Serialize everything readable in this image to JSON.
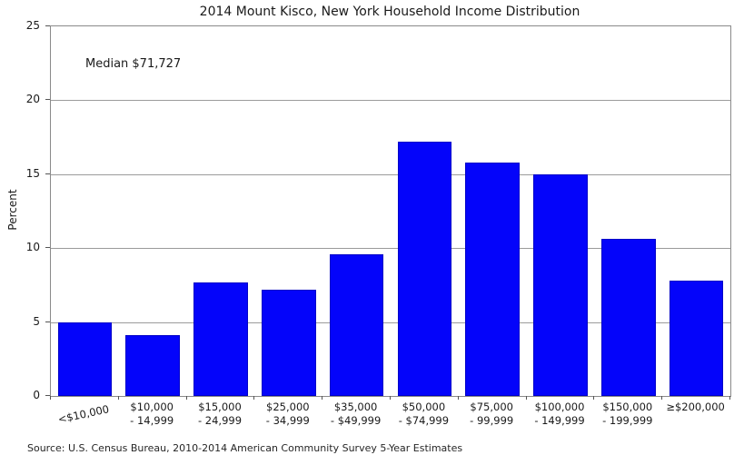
{
  "title": "2014 Mount Kisco, New York Household Income Distribution",
  "annotation": "Median $71,727",
  "ylabel": "Percent",
  "source": "Source: U.S. Census Bureau, 2010-2014 American Community Survey 5-Year Estimates",
  "chart_data": {
    "type": "bar",
    "title": "2014 Mount Kisco, New York Household Income Distribution",
    "xlabel": "",
    "ylabel": "Percent",
    "ylim": [
      0,
      25
    ],
    "yticks": [
      0,
      5,
      10,
      15,
      20,
      25
    ],
    "grid": true,
    "legend_position": "none",
    "bar_color": "#0404fa",
    "bar_edge_color": "#0000c8",
    "annotation": "Median $71,727",
    "categories": [
      "<$10,000",
      "$10,000 - 14,999",
      "$15,000 - 24,999",
      "$25,000 - 34,999",
      "$35,000 - $49,999",
      "$50,000 - $74,999",
      "$75,000 - 99,999",
      "$100,000 - 149,999",
      "$150,000 - 199,999",
      "≥$200,000"
    ],
    "category_label_lines": [
      [
        "<$10,000"
      ],
      [
        "$10,000",
        "- 14,999"
      ],
      [
        "$15,000",
        "- 24,999"
      ],
      [
        "$25,000",
        "- 34,999"
      ],
      [
        "$35,000",
        "- $49,999"
      ],
      [
        "$50,000",
        "- $74,999"
      ],
      [
        "$75,000",
        "- 99,999"
      ],
      [
        "$100,000",
        "- 149,999"
      ],
      [
        "$150,000",
        "- 199,999"
      ],
      [
        "≥$200,000"
      ]
    ],
    "values": [
      5.0,
      4.1,
      7.7,
      7.2,
      9.6,
      17.2,
      15.8,
      15.0,
      10.6,
      7.8
    ]
  }
}
